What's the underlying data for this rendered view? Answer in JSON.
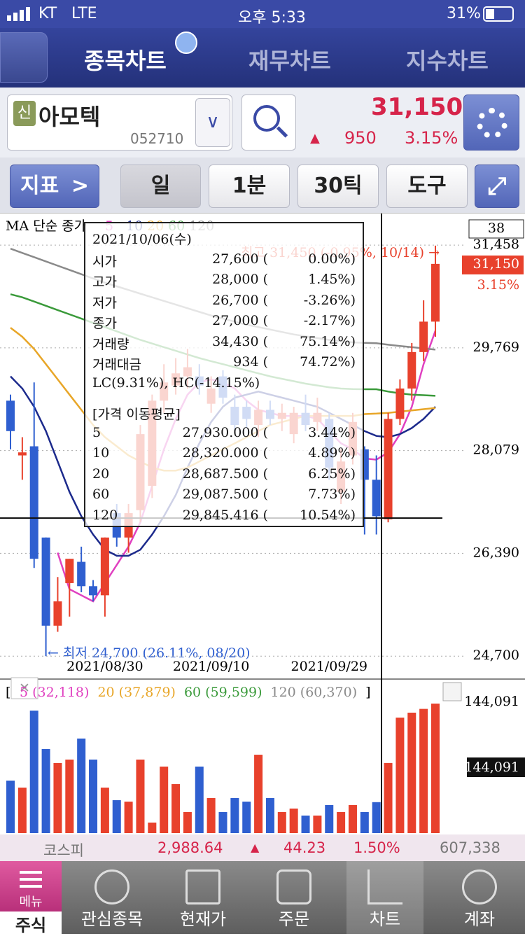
{
  "status_bar": {
    "carrier": "KT",
    "network": "LTE",
    "time": "오후 5:33",
    "battery": "31%"
  },
  "tabs": [
    "종목차트",
    "재무차트",
    "지수차트"
  ],
  "stock": {
    "badge": "신",
    "name": "아모텍",
    "code": "052710",
    "price": "31,150",
    "arrow": "▲",
    "change": "950",
    "change_rate": "3.15%"
  },
  "toolbar": {
    "indicator": "지표",
    "period": "일",
    "minute": "1분",
    "tick": "30틱",
    "tools": "도구"
  },
  "chart_data": {
    "type": "candlestick",
    "categories": [
      null,
      null,
      null,
      null,
      null,
      null,
      null,
      null,
      "2021/08/30",
      null,
      null,
      null,
      null,
      null,
      null,
      null,
      null,
      "2021/09/10",
      null,
      null,
      null,
      null,
      null,
      null,
      null,
      null,
      null,
      "2021/09/29",
      null,
      null,
      null,
      null,
      null,
      null,
      null,
      null,
      null
    ],
    "open": [
      28900,
      28000,
      28150,
      26650,
      25200,
      25900,
      26250,
      25850,
      25700,
      27050,
      26650,
      27100,
      27500,
      28900,
      29150,
      29300,
      29300,
      28850,
      29300,
      28800,
      28800,
      28500,
      28750,
      28600,
      28350,
      28700,
      28550,
      28600,
      27400,
      28000,
      28100,
      27600,
      26950,
      28600,
      29100,
      29700,
      30200
    ],
    "high": [
      29000,
      28300,
      29200,
      26650,
      26000,
      26300,
      26500,
      25950,
      26650,
      27200,
      27200,
      28500,
      29000,
      29500,
      29600,
      29750,
      29500,
      29300,
      29400,
      29000,
      28900,
      28900,
      28900,
      28850,
      28800,
      29000,
      28950,
      28700,
      28100,
      28700,
      28150,
      28000,
      28700,
      29250,
      29850,
      30550,
      31450
    ],
    "low": [
      28100,
      27600,
      26150,
      24700,
      25100,
      25350,
      25750,
      25600,
      25350,
      26500,
      26400,
      26900,
      27300,
      28700,
      29000,
      29100,
      29000,
      28700,
      28850,
      28400,
      28450,
      28300,
      28500,
      28400,
      28200,
      28400,
      28400,
      27600,
      27200,
      27850,
      26700,
      26700,
      26900,
      28500,
      28900,
      29550,
      29950
    ],
    "close": [
      28400,
      28050,
      26300,
      25200,
      25600,
      26300,
      25850,
      25700,
      26650,
      26650,
      27050,
      28350,
      28900,
      29200,
      29350,
      29450,
      29150,
      29100,
      28950,
      28500,
      28600,
      28750,
      28600,
      28700,
      28700,
      28500,
      28700,
      27800,
      27900,
      28550,
      27600,
      27000,
      28600,
      29100,
      29700,
      30200,
      31150
    ],
    "up_color": "#e8412c",
    "down_color": "#2f5fd0",
    "ma_legend": "MA 단순 종가",
    "ma": [
      {
        "name": "5",
        "color": "#e040c0",
        "values": [
          null,
          null,
          null,
          null,
          26400,
          25800,
          25700,
          25600,
          25900,
          26200,
          26500,
          26900,
          27500,
          28100,
          28600,
          29000,
          29200,
          29250,
          29200,
          29100,
          28900,
          28750,
          28700,
          28650,
          28650,
          28650,
          28600,
          28400,
          28200,
          28100,
          27950,
          27930,
          28050,
          28350,
          28800,
          29500,
          30050
        ]
      },
      {
        "name": "10",
        "color": "#1c2a8c",
        "values": [
          29300,
          29100,
          28800,
          28400,
          27900,
          27400,
          27000,
          26700,
          26450,
          26350,
          26350,
          26450,
          26700,
          27000,
          27350,
          27800,
          28200,
          28550,
          28800,
          28950,
          29000,
          29050,
          29000,
          28950,
          28900,
          28850,
          28800,
          28700,
          28600,
          28500,
          28400,
          28320,
          28300,
          28350,
          28450,
          28600,
          28800
        ]
      },
      {
        "name": "20",
        "color": "#e8a628",
        "values": [
          30100,
          29950,
          29750,
          29500,
          29250,
          29000,
          28750,
          28500,
          28300,
          28150,
          28000,
          27900,
          27800,
          27750,
          27750,
          27800,
          27900,
          28000,
          28100,
          28200,
          28300,
          28400,
          28500,
          28550,
          28600,
          28650,
          28650,
          28650,
          28650,
          28650,
          28680,
          28688,
          28700,
          28720,
          28740,
          28760,
          28780
        ]
      },
      {
        "name": "60",
        "color": "#3a9a3a",
        "values": [
          30650,
          30600,
          30530,
          30460,
          30390,
          30320,
          30250,
          30180,
          30110,
          30040,
          29970,
          29900,
          29840,
          29780,
          29720,
          29660,
          29600,
          29550,
          29500,
          29450,
          29400,
          29350,
          29300,
          29260,
          29220,
          29180,
          29150,
          29120,
          29100,
          29090,
          29088,
          29088,
          29050,
          29020,
          29000,
          28990,
          28980
        ]
      },
      {
        "name": "120",
        "color": "#8a8a8a",
        "values": [
          31400,
          31330,
          31260,
          31190,
          31120,
          31050,
          30980,
          30910,
          30840,
          30780,
          30720,
          30660,
          30600,
          30540,
          30480,
          30420,
          30360,
          30300,
          30250,
          30200,
          30150,
          30110,
          30070,
          30030,
          29990,
          29960,
          29930,
          29900,
          29880,
          29860,
          29850,
          29845,
          29820,
          29800,
          29780,
          29760,
          29740
        ]
      }
    ],
    "ylim": [
      24380,
      31920
    ],
    "yticks": [
      {
        "value": 31458,
        "label": "31,458"
      },
      {
        "value": 29769,
        "label": "29,769"
      },
      {
        "value": 28079,
        "label": "28,079"
      },
      {
        "value": 26390,
        "label": "26,390"
      },
      {
        "value": 24700,
        "label": "24,700"
      }
    ],
    "grid": true,
    "last_box": "38",
    "price_tag": "31,150",
    "change_tag": "3.15%",
    "high_note": "최고 31,450 (-0.95%, 10/14) →",
    "low_note": "← 최저 24,700 (26.11%, 08/20)",
    "volume": {
      "values": [
        58400,
        50600,
        136300,
        93500,
        77900,
        81800,
        105200,
        81800,
        50600,
        36600,
        35000,
        81800,
        11700,
        74000,
        54500,
        23400,
        74000,
        39000,
        23400,
        39000,
        35000,
        87200,
        39000,
        23400,
        27300,
        19500,
        19500,
        31200,
        23400,
        31200,
        23400,
        34430,
        78000,
        128500,
        134000,
        138200,
        144091
      ],
      "ylim": [
        0,
        155800
      ],
      "max_label": "144,091",
      "current_label": "144,091",
      "legend_open": "[",
      "legend_close": "]",
      "legend": [
        {
          "label": "5 (32,118)",
          "color": "#e040c0"
        },
        {
          "label": "20 (37,879)",
          "color": "#e8a628"
        },
        {
          "label": "60 (59,599)",
          "color": "#3a9a3a"
        },
        {
          "label": "120 (60,370)",
          "color": "#8a8a8a"
        }
      ]
    }
  },
  "tooltip": {
    "date": "2021/10/06(수)",
    "rows": [
      [
        "시가",
        "27,600 (",
        "0.00%)"
      ],
      [
        "고가",
        "28,000 (",
        "1.45%)"
      ],
      [
        "저가",
        "26,700 (",
        "-3.26%)"
      ],
      [
        "종가",
        "27,000 (",
        "-2.17%)"
      ],
      [
        "거래량",
        "34,430 (",
        "75.14%)"
      ],
      [
        "거래대금",
        "934 (",
        "74.72%)"
      ]
    ],
    "lc_hc": "LC(9.31%), HC(-14.15%)",
    "ma_title": "[가격 이동평균]",
    "ma_rows": [
      [
        "5",
        "27,930.000 (",
        "3.44%)"
      ],
      [
        "10",
        "28,320.000 (",
        "4.89%)"
      ],
      [
        "20",
        "28,687.500 (",
        "6.25%)"
      ],
      [
        "60",
        "29,087.500 (",
        "7.73%)"
      ],
      [
        "120",
        "29,845.416 (",
        "10.54%)"
      ]
    ]
  },
  "index_bar": {
    "name": "코스피",
    "value": "2,988.64",
    "arrow": "▲",
    "change": "44.23",
    "rate": "1.50%",
    "volume": "607,338"
  },
  "bottom_nav": {
    "menu": "메뉴",
    "items": [
      "주식",
      "관심종목",
      "현재가",
      "주문",
      "차트",
      "계좌"
    ]
  }
}
